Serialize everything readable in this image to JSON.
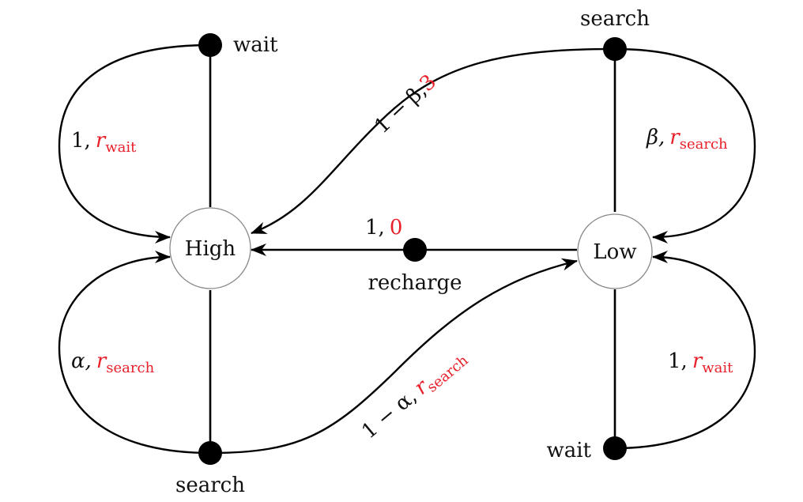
{
  "colors": {
    "accent": "#e8202a",
    "line": "#000000",
    "state_border": "#888888"
  },
  "states": {
    "high": "High",
    "low": "Low"
  },
  "actions": {
    "high_wait": "wait",
    "high_search": "search",
    "low_search": "search",
    "low_wait": "wait",
    "recharge": "recharge"
  },
  "transitions": {
    "high_wait_loop": {
      "prob": "1,",
      "reward": "r",
      "reward_sub": "wait"
    },
    "high_search_loop": {
      "prob": "α,",
      "reward": "r",
      "reward_sub": "search"
    },
    "high_search_to_low": {
      "prob": "1 − α,",
      "reward": "r",
      "reward_sub": "search"
    },
    "low_search_loop": {
      "prob": "β,",
      "reward": "r",
      "reward_sub": "search"
    },
    "low_search_to_high": {
      "prob": "1 − β,",
      "reward": "3"
    },
    "low_wait_loop": {
      "prob": "1,",
      "reward": "r",
      "reward_sub": "wait"
    },
    "recharge_to_high": {
      "prob": "1,",
      "reward": "0"
    }
  }
}
